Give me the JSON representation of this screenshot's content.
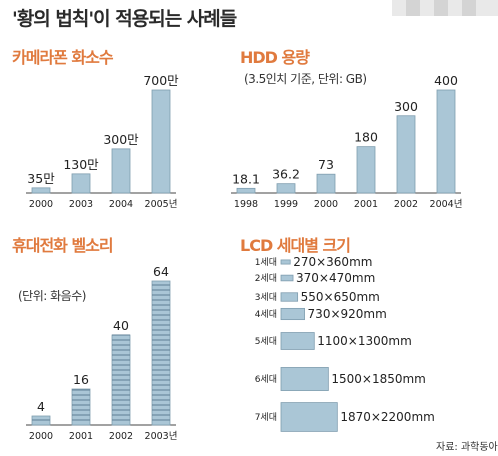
{
  "title": "'황의 법칙'이 적용되는 사례들",
  "source": "자료: 과학동아",
  "chart_data": [
    {
      "type": "bar",
      "title": "카메라폰 화소수",
      "categories": [
        "2000",
        "2003",
        "2004",
        "2005년"
      ],
      "values": [
        35,
        130,
        300,
        700
      ],
      "value_labels": [
        "35만",
        "130만",
        "300만",
        "700만"
      ],
      "ylim": [
        0,
        700
      ]
    },
    {
      "type": "bar",
      "title": "HDD 용량",
      "subtitle": "(3.5인치 기준, 단위: GB)",
      "categories": [
        "1998",
        "1999",
        "2000",
        "2001",
        "2002",
        "2004년"
      ],
      "values": [
        18.1,
        36.2,
        73,
        180,
        300,
        400
      ],
      "value_labels": [
        "18.1",
        "36.2",
        "73",
        "180",
        "300",
        "400"
      ],
      "ylim": [
        0,
        400
      ]
    },
    {
      "type": "bar",
      "title": "휴대전화 벨소리",
      "subtitle": "(단위: 화음수)",
      "categories": [
        "2000",
        "2001",
        "2002",
        "2003년"
      ],
      "values": [
        4,
        16,
        40,
        64
      ],
      "value_labels": [
        "4",
        "16",
        "40",
        "64"
      ],
      "ylim": [
        0,
        64
      ]
    },
    {
      "type": "bar",
      "orientation": "horizontal",
      "title": "LCD 세대별 크기",
      "categories": [
        "1세대",
        "2세대",
        "3세대",
        "4세대",
        "5세대",
        "6세대",
        "7세대"
      ],
      "values": [
        [
          270,
          360
        ],
        [
          370,
          470
        ],
        [
          550,
          650
        ],
        [
          730,
          920
        ],
        [
          1100,
          1300
        ],
        [
          1500,
          1850
        ],
        [
          1870,
          2200
        ]
      ],
      "value_labels": [
        "270×360mm",
        "370×470mm",
        "550×650mm",
        "730×920mm",
        "1100×1300mm",
        "1500×1850mm",
        "1870×2200mm"
      ]
    }
  ]
}
